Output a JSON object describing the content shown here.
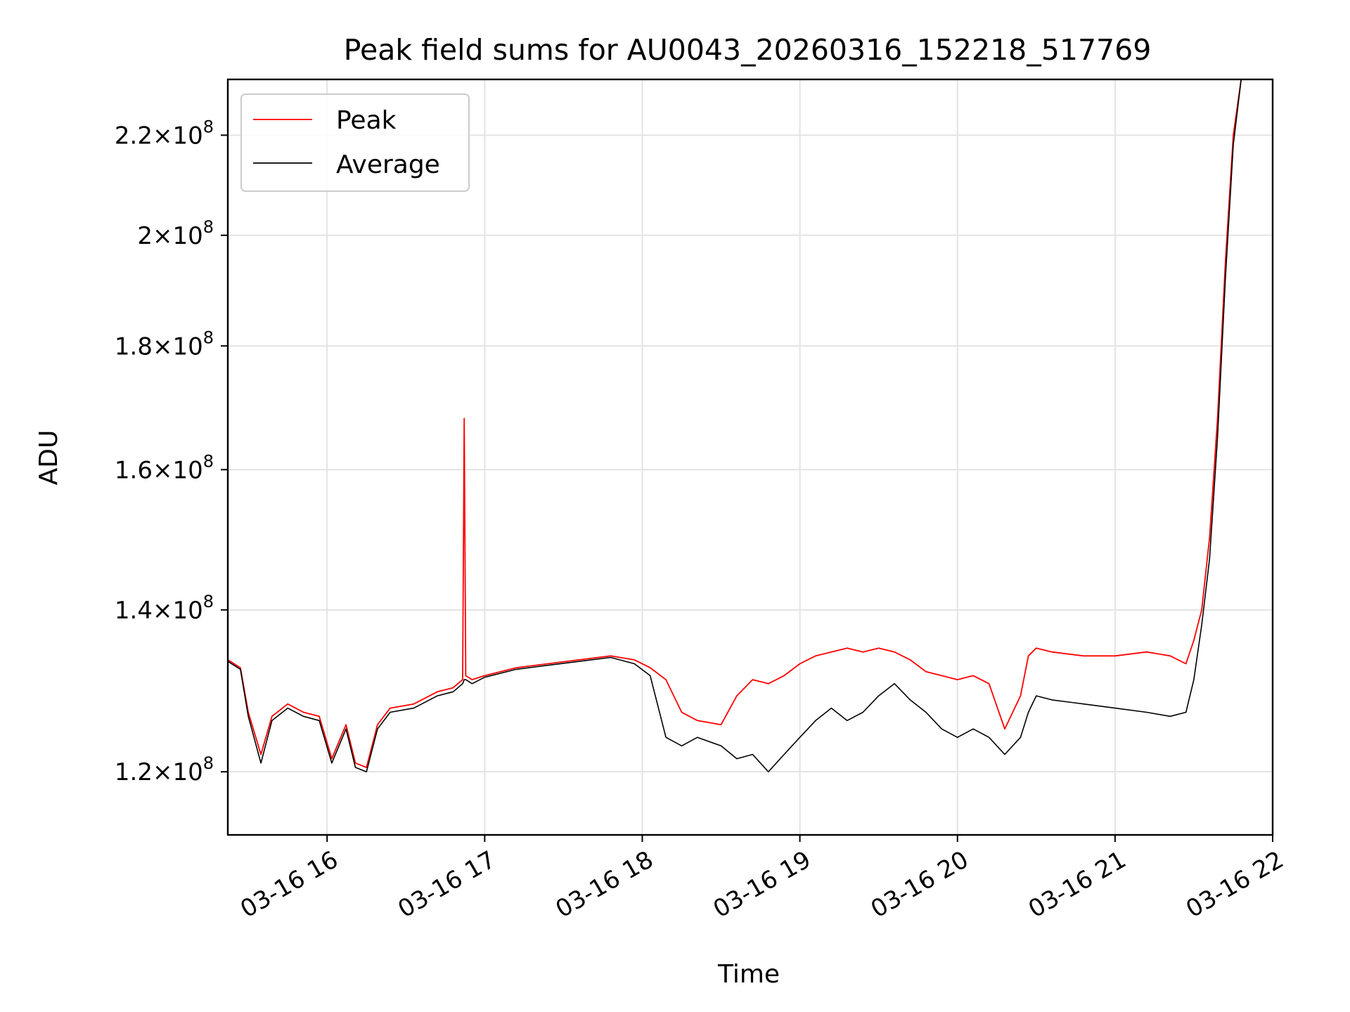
{
  "chart_data": {
    "type": "line",
    "title": "Peak field sums for AU0043_20260316_152218_517769",
    "xlabel": "Time",
    "ylabel": "ADU",
    "yscale": "log",
    "xlim_hours": [
      15.37,
      22.0
    ],
    "ylim": [
      113000000,
      232000000
    ],
    "grid": true,
    "legend_position": "upper-left",
    "x_ticks": [
      {
        "hour": 16,
        "label": "03-16 16"
      },
      {
        "hour": 17,
        "label": "03-16 17"
      },
      {
        "hour": 18,
        "label": "03-16 18"
      },
      {
        "hour": 19,
        "label": "03-16 19"
      },
      {
        "hour": 20,
        "label": "03-16 20"
      },
      {
        "hour": 21,
        "label": "03-16 21"
      },
      {
        "hour": 22,
        "label": "03-16 22"
      }
    ],
    "y_ticks": [
      {
        "value": 120000000,
        "mantissa": "1.2",
        "exponent": "8"
      },
      {
        "value": 140000000,
        "mantissa": "1.4",
        "exponent": "8"
      },
      {
        "value": 160000000,
        "mantissa": "1.6",
        "exponent": "8"
      },
      {
        "value": 180000000,
        "mantissa": "1.8",
        "exponent": "8"
      },
      {
        "value": 200000000,
        "mantissa": "2",
        "exponent": "8"
      },
      {
        "value": 220000000,
        "mantissa": "2.2",
        "exponent": "8"
      }
    ],
    "series": [
      {
        "name": "Peak",
        "color": "#ff0000",
        "hours": [
          15.37,
          15.45,
          15.5,
          15.58,
          15.65,
          15.75,
          15.85,
          15.95,
          16.03,
          16.12,
          16.18,
          16.25,
          16.32,
          16.4,
          16.55,
          16.7,
          16.8,
          16.86,
          16.87,
          16.88,
          16.92,
          17.0,
          17.2,
          17.4,
          17.6,
          17.8,
          17.95,
          18.05,
          18.15,
          18.25,
          18.35,
          18.5,
          18.6,
          18.7,
          18.8,
          18.9,
          19.0,
          19.1,
          19.2,
          19.3,
          19.4,
          19.5,
          19.6,
          19.7,
          19.8,
          19.9,
          20.0,
          20.1,
          20.2,
          20.3,
          20.4,
          20.45,
          20.5,
          20.6,
          20.8,
          21.0,
          21.2,
          21.35,
          21.45,
          21.5,
          21.55,
          21.6,
          21.65,
          21.7,
          21.75,
          21.8,
          21.85,
          21.95
        ],
        "values": [
          133500000,
          132500000,
          127000000,
          122000000,
          126500000,
          128000000,
          127000000,
          126500000,
          121500000,
          125500000,
          121000000,
          120500000,
          125500000,
          127500000,
          128000000,
          129500000,
          130000000,
          131000000,
          168000000,
          131500000,
          131000000,
          131500000,
          132500000,
          133000000,
          133500000,
          134000000,
          133500000,
          132500000,
          131000000,
          127000000,
          126000000,
          125500000,
          129000000,
          131000000,
          130500000,
          131500000,
          133000000,
          134000000,
          134500000,
          135000000,
          134500000,
          135000000,
          134500000,
          133500000,
          132000000,
          131500000,
          131000000,
          131500000,
          130500000,
          125000000,
          129000000,
          134000000,
          135000000,
          134500000,
          134000000,
          134000000,
          134500000,
          134000000,
          133000000,
          136000000,
          140000000,
          150000000,
          168000000,
          195000000,
          220000000,
          232000000,
          232000000,
          232000000
        ]
      },
      {
        "name": "Average",
        "color": "#000000",
        "hours": [
          15.37,
          15.45,
          15.5,
          15.58,
          15.65,
          15.75,
          15.85,
          15.95,
          16.03,
          16.12,
          16.18,
          16.25,
          16.32,
          16.4,
          16.55,
          16.7,
          16.8,
          16.86,
          16.87,
          16.88,
          16.92,
          17.0,
          17.2,
          17.4,
          17.6,
          17.8,
          17.95,
          18.05,
          18.15,
          18.25,
          18.35,
          18.5,
          18.6,
          18.7,
          18.8,
          18.9,
          19.0,
          19.1,
          19.2,
          19.3,
          19.4,
          19.5,
          19.6,
          19.7,
          19.8,
          19.9,
          20.0,
          20.1,
          20.2,
          20.3,
          20.4,
          20.45,
          20.5,
          20.6,
          20.8,
          21.0,
          21.2,
          21.35,
          21.45,
          21.5,
          21.55,
          21.6,
          21.65,
          21.7,
          21.75,
          21.8,
          21.85,
          21.95
        ],
        "values": [
          133300000,
          132300000,
          126500000,
          121000000,
          126000000,
          127500000,
          126500000,
          126000000,
          121000000,
          125000000,
          120500000,
          120000000,
          125000000,
          127000000,
          127500000,
          129000000,
          129500000,
          130500000,
          131000000,
          131000000,
          130500000,
          131300000,
          132300000,
          132800000,
          133300000,
          133800000,
          133000000,
          131500000,
          124000000,
          123000000,
          124000000,
          123000000,
          121500000,
          122000000,
          120000000,
          122000000,
          124000000,
          126000000,
          127500000,
          126000000,
          127000000,
          129000000,
          130500000,
          128500000,
          127000000,
          125000000,
          124000000,
          125000000,
          124000000,
          122000000,
          124000000,
          127000000,
          129000000,
          128500000,
          128000000,
          127500000,
          127000000,
          126500000,
          127000000,
          131000000,
          138000000,
          147000000,
          165000000,
          192000000,
          218000000,
          232000000,
          232000000,
          232000000
        ]
      }
    ]
  }
}
